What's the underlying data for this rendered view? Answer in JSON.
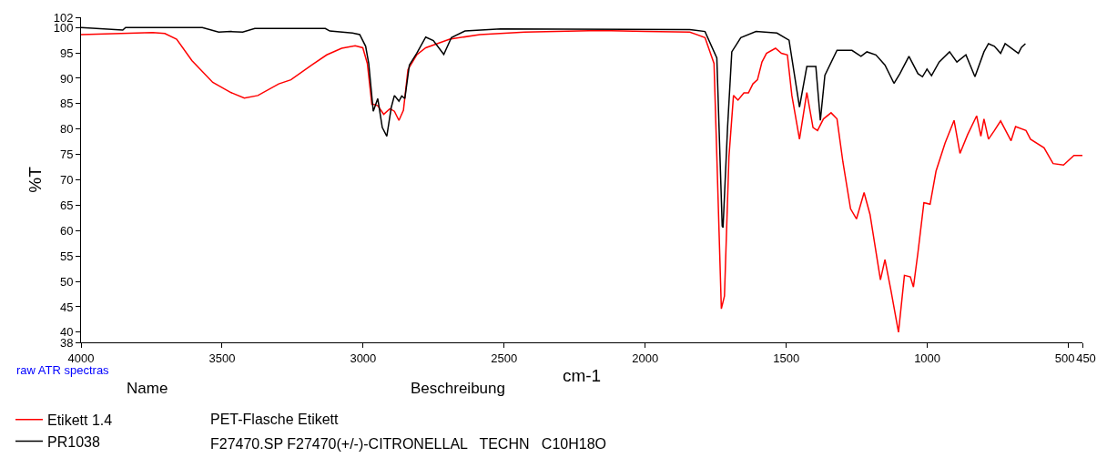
{
  "chart_data": {
    "type": "line",
    "xlabel": "cm-1",
    "ylabel": "%T",
    "xlim": [
      4000,
      450
    ],
    "xticks": [
      4000,
      3500,
      3000,
      2500,
      2000,
      1500,
      1000,
      500,
      450
    ],
    "ylim": [
      38,
      102
    ],
    "yticks": [
      38,
      40,
      45,
      50,
      55,
      60,
      65,
      70,
      75,
      80,
      85,
      90,
      95,
      100,
      102
    ],
    "legend": "bottom",
    "marker": "none",
    "line_style": "solid",
    "annotations": [
      "raw ATR spectras",
      "Name",
      "Beschreibung",
      "PET-Flasche Etikett",
      "F27470.SP F27470(+/-)-CITRONELLAL   TECHN   C10H18O"
    ],
    "series": [
      {
        "name": "Etikett 1.4",
        "color": "#ff0000",
        "x": [
          4000,
          3746,
          3703,
          3661,
          3607,
          3533,
          3469,
          3421,
          3373,
          3299,
          3256,
          3182,
          3129,
          3076,
          3028,
          3001,
          2985,
          2969,
          2964,
          2948,
          2927,
          2905,
          2889,
          2873,
          2857,
          2841,
          2810,
          2778,
          2693,
          2586,
          2427,
          2161,
          2001,
          1842,
          1788,
          1756,
          1746,
          1730,
          1719,
          1703,
          1687,
          1671,
          1650,
          1634,
          1618,
          1602,
          1586,
          1570,
          1538,
          1517,
          1496,
          1480,
          1453,
          1427,
          1405,
          1389,
          1368,
          1341,
          1320,
          1299,
          1272,
          1251,
          1224,
          1203,
          1166,
          1150,
          1129,
          1102,
          1081,
          1060,
          1049,
          1033,
          1012,
          990,
          969,
          937,
          905,
          884,
          857,
          825,
          810,
          799,
          783,
          762,
          740,
          703,
          687,
          650,
          634,
          586,
          554,
          517,
          480,
          450
        ],
        "values": [
          98.6,
          99.0,
          98.8,
          97.7,
          93.5,
          89.2,
          87.2,
          86.1,
          86.6,
          88.9,
          89.7,
          92.6,
          94.6,
          95.9,
          96.4,
          96.0,
          92.9,
          84.9,
          84.9,
          84.6,
          82.9,
          84.0,
          83.5,
          81.7,
          83.7,
          91.7,
          94.6,
          96.0,
          97.7,
          98.6,
          99.1,
          99.4,
          99.2,
          99.1,
          98.0,
          92.9,
          74.6,
          44.6,
          47.1,
          74.6,
          86.6,
          85.7,
          87.1,
          87.1,
          88.9,
          89.7,
          93.2,
          94.9,
          95.9,
          94.9,
          94.6,
          86.6,
          78.0,
          87.2,
          80.3,
          79.7,
          82.0,
          83.2,
          82.0,
          73.5,
          64.3,
          62.3,
          67.5,
          63.2,
          50.3,
          54.3,
          48.3,
          40.0,
          51.2,
          50.9,
          48.9,
          55.7,
          65.5,
          65.2,
          71.7,
          77.2,
          81.7,
          75.2,
          78.9,
          82.6,
          78.6,
          82.0,
          78.0,
          79.7,
          81.6,
          77.7,
          80.5,
          79.7,
          78.0,
          76.3,
          73.2,
          72.9,
          74.8,
          74.8
        ]
      },
      {
        "name": "PR1038",
        "color": "#000000",
        "x": [
          4000,
          3852,
          3842,
          3570,
          3512,
          3469,
          3427,
          3384,
          3134,
          3118,
          3038,
          3012,
          2991,
          2980,
          2964,
          2948,
          2932,
          2916,
          2900,
          2889,
          2873,
          2863,
          2852,
          2836,
          2810,
          2778,
          2751,
          2714,
          2687,
          2639,
          2512,
          1842,
          1788,
          1746,
          1727,
          1724,
          1708,
          1693,
          1661,
          1607,
          1533,
          1490,
          1453,
          1427,
          1395,
          1379,
          1363,
          1320,
          1267,
          1235,
          1214,
          1182,
          1150,
          1118,
          1097,
          1065,
          1033,
          1017,
          1001,
          985,
          958,
          921,
          895,
          863,
          831,
          799,
          783,
          762,
          740,
          724,
          677,
          666,
          652
        ],
        "values": [
          100,
          99.5,
          100,
          100,
          99.1,
          99.2,
          99.1,
          99.8,
          99.8,
          99.3,
          98.9,
          98.6,
          96.3,
          92.9,
          83.5,
          86.0,
          80.3,
          78.6,
          84.3,
          86.6,
          85.5,
          86.5,
          86.0,
          92.6,
          94.9,
          98.1,
          97.4,
          94.7,
          98.0,
          99.3,
          99.7,
          99.6,
          99.2,
          94.0,
          60.9,
          60.6,
          80.3,
          95.2,
          98.0,
          99.2,
          98.9,
          97.5,
          84.3,
          92.3,
          92.3,
          81.7,
          90.6,
          95.5,
          95.5,
          94.3,
          95.2,
          94.6,
          92.6,
          89.0,
          90.9,
          94.3,
          90.9,
          90.3,
          91.8,
          90.5,
          93.2,
          95.2,
          93.2,
          94.6,
          90.3,
          95.2,
          96.8,
          96.3,
          94.9,
          96.8,
          94.9,
          96.1,
          96.8
        ]
      }
    ]
  }
}
